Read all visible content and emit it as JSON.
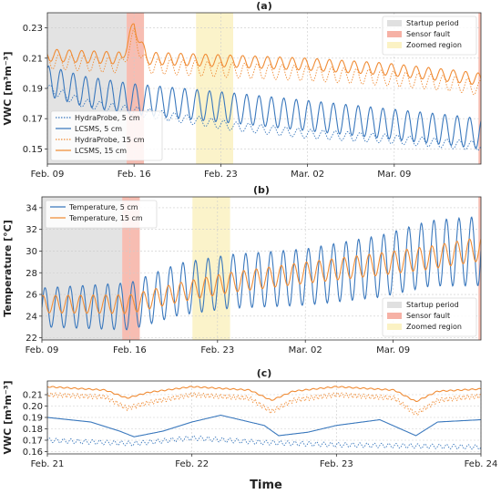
{
  "figure": {
    "xlabel": "Time"
  },
  "colors": {
    "blue": "#3a78bd",
    "orange": "#f08c35",
    "startup": "#e0e0e0",
    "fault": "#f6b1a5",
    "zoom": "#fbf2c4"
  },
  "chart_data": [
    {
      "id": "a",
      "type": "line",
      "title": "(a)",
      "ylabel": "VWC [m³m⁻³]",
      "xlabel": "",
      "x_unit": "day (Feb 1 = day 1)",
      "xlim": [
        9,
        44
      ],
      "ylim": [
        0.14,
        0.24
      ],
      "yticks": [
        0.15,
        0.17,
        0.19,
        0.21,
        0.23
      ],
      "xticks": [
        {
          "x": 9,
          "label": "Feb. 09"
        },
        {
          "x": 16,
          "label": "Feb. 16"
        },
        {
          "x": 23,
          "label": "Feb. 23"
        },
        {
          "x": 30,
          "label": "Mar. 02"
        },
        {
          "x": 37,
          "label": "Mar. 09"
        }
      ],
      "grid": true,
      "spans": [
        {
          "name": "Startup period",
          "x0": 9,
          "x1": 15.4,
          "color": "startup"
        },
        {
          "name": "Sensor fault",
          "x0": 15.4,
          "x1": 16.8,
          "color": "fault"
        },
        {
          "name": "Zoomed region",
          "x0": 21,
          "x1": 24,
          "color": "zoom"
        },
        {
          "name": "",
          "x0": 43.8,
          "x1": 44,
          "color": "fault"
        }
      ],
      "span_legend": {
        "placement": "top-right",
        "entries": [
          "Startup period",
          "Sensor fault",
          "Zoomed region"
        ]
      },
      "series_legend": {
        "placement": "bottom-left"
      },
      "series": [
        {
          "name": "HydraProbe, 5 cm",
          "color": "blue",
          "style": "dotted",
          "points": [
            [
              9,
              0.19
            ],
            [
              12,
              0.18
            ],
            [
              16,
              0.175
            ],
            [
              20,
              0.17
            ],
            [
              24,
              0.165
            ],
            [
              30,
              0.16
            ],
            [
              36,
              0.157
            ],
            [
              42,
              0.153
            ],
            [
              44,
              0.152
            ]
          ],
          "amplitude": 0.003,
          "period": 1
        },
        {
          "name": "LCSMS, 5 cm",
          "color": "blue",
          "style": "solid",
          "points": [
            [
              9,
              0.195
            ],
            [
              12,
              0.188
            ],
            [
              16,
              0.183
            ],
            [
              20,
              0.18
            ],
            [
              24,
              0.177
            ],
            [
              30,
              0.172
            ],
            [
              36,
              0.167
            ],
            [
              42,
              0.162
            ],
            [
              44,
              0.16
            ]
          ],
          "amplitude": 0.01,
          "period": 1
        },
        {
          "name": "HydraProbe, 15 cm",
          "color": "orange",
          "style": "dotted",
          "points": [
            [
              9,
              0.208
            ],
            [
              15,
              0.205
            ],
            [
              16,
              0.225
            ],
            [
              17,
              0.205
            ],
            [
              24,
              0.202
            ],
            [
              30,
              0.2
            ],
            [
              36,
              0.197
            ],
            [
              42,
              0.193
            ],
            [
              44,
              0.19
            ]
          ],
          "amplitude": 0.005,
          "period": 1
        },
        {
          "name": "LCSMS, 15 cm",
          "color": "orange",
          "style": "solid",
          "points": [
            [
              9,
              0.212
            ],
            [
              15,
              0.21
            ],
            [
              16,
              0.232
            ],
            [
              17,
              0.21
            ],
            [
              24,
              0.208
            ],
            [
              30,
              0.206
            ],
            [
              36,
              0.203
            ],
            [
              42,
              0.198
            ],
            [
              44,
              0.196
            ]
          ],
          "amplitude": 0.004,
          "period": 1
        }
      ]
    },
    {
      "id": "b",
      "type": "line",
      "title": "(b)",
      "ylabel": "Temperature [°C]",
      "xlabel": "",
      "x_unit": "day (Feb 1 = day 1)",
      "xlim": [
        9,
        44
      ],
      "ylim": [
        21.8,
        35
      ],
      "yticks": [
        22,
        24,
        26,
        28,
        30,
        32,
        34
      ],
      "xticks": [
        {
          "x": 9,
          "label": "Feb. 09"
        },
        {
          "x": 16,
          "label": "Feb. 16"
        },
        {
          "x": 23,
          "label": "Feb. 23"
        },
        {
          "x": 30,
          "label": "Mar. 02"
        },
        {
          "x": 37,
          "label": "Mar. 09"
        }
      ],
      "grid": true,
      "spans": [
        {
          "name": "Startup period",
          "x0": 9,
          "x1": 15.4,
          "color": "startup"
        },
        {
          "name": "Sensor fault",
          "x0": 15.4,
          "x1": 16.8,
          "color": "fault"
        },
        {
          "name": "Zoomed region",
          "x0": 21,
          "x1": 24,
          "color": "zoom"
        },
        {
          "name": "",
          "x0": 43.8,
          "x1": 44,
          "color": "fault"
        }
      ],
      "span_legend": {
        "placement": "bottom-right",
        "entries": [
          "Startup period",
          "Sensor fault",
          "Zoomed region"
        ]
      },
      "series_legend": {
        "placement": "top-left"
      },
      "series": [
        {
          "name": "Temperature, 5 cm",
          "color": "blue",
          "style": "solid",
          "points": [
            [
              9,
              24.8
            ],
            [
              16,
              24.9
            ],
            [
              20,
              26.5
            ],
            [
              24,
              27.2
            ],
            [
              30,
              27.6
            ],
            [
              36,
              28.6
            ],
            [
              40,
              29.8
            ],
            [
              44,
              30
            ]
          ],
          "amplitude": [
            [
              9,
              1.8
            ],
            [
              20,
              2.4
            ],
            [
              30,
              2.6
            ],
            [
              44,
              3.2
            ]
          ],
          "period": 1
        },
        {
          "name": "Temperature, 15 cm",
          "color": "orange",
          "style": "solid",
          "points": [
            [
              9,
              25.1
            ],
            [
              16,
              25.1
            ],
            [
              20,
              26.2
            ],
            [
              24,
              27.1
            ],
            [
              30,
              28.0
            ],
            [
              36,
              28.8
            ],
            [
              40,
              29.4
            ],
            [
              44,
              30.2
            ]
          ],
          "amplitude": [
            [
              9,
              0.8
            ],
            [
              44,
              1.1
            ]
          ],
          "period": 1
        }
      ]
    },
    {
      "id": "c",
      "type": "line",
      "title": "(c)",
      "ylabel": "VWC [m³m⁻³]",
      "xlabel": "",
      "x_unit": "day (Feb 1 = day 1)",
      "xlim": [
        21,
        24
      ],
      "ylim": [
        0.158,
        0.222
      ],
      "yticks": [
        0.16,
        0.17,
        0.18,
        0.19,
        0.2,
        0.21
      ],
      "xticks": [
        {
          "x": 21,
          "label": "Feb. 21"
        },
        {
          "x": 22,
          "label": "Feb. 22"
        },
        {
          "x": 23,
          "label": "Feb. 23"
        },
        {
          "x": 24,
          "label": "Feb. 24"
        }
      ],
      "grid": true,
      "spans": [],
      "series": [
        {
          "name": "HydraProbe, 5 cm",
          "color": "blue",
          "style": "dotted",
          "points": [
            [
              21,
              0.17
            ],
            [
              21.4,
              0.168
            ],
            [
              21.6,
              0.167
            ],
            [
              22,
              0.172
            ],
            [
              22.5,
              0.168
            ],
            [
              23,
              0.166
            ],
            [
              23.5,
              0.165
            ],
            [
              24,
              0.164
            ]
          ],
          "amplitude": 0.002,
          "period": 0.05
        },
        {
          "name": "LCSMS, 5 cm",
          "color": "blue",
          "style": "solid",
          "points": [
            [
              21,
              0.19
            ],
            [
              21.3,
              0.186
            ],
            [
              21.5,
              0.178
            ],
            [
              21.6,
              0.173
            ],
            [
              21.8,
              0.178
            ],
            [
              22,
              0.186
            ],
            [
              22.2,
              0.192
            ],
            [
              22.5,
              0.183
            ],
            [
              22.6,
              0.174
            ],
            [
              22.8,
              0.177
            ],
            [
              23,
              0.183
            ],
            [
              23.3,
              0.188
            ],
            [
              23.55,
              0.174
            ],
            [
              23.7,
              0.186
            ],
            [
              24,
              0.188
            ]
          ],
          "amplitude": 0,
          "period": 1
        },
        {
          "name": "HydraProbe, 15 cm",
          "color": "orange",
          "style": "dotted",
          "points": [
            [
              21,
              0.21
            ],
            [
              21.4,
              0.208
            ],
            [
              21.55,
              0.198
            ],
            [
              21.7,
              0.203
            ],
            [
              22,
              0.21
            ],
            [
              22.4,
              0.207
            ],
            [
              22.55,
              0.195
            ],
            [
              22.7,
              0.205
            ],
            [
              23,
              0.21
            ],
            [
              23.4,
              0.207
            ],
            [
              23.55,
              0.193
            ],
            [
              23.7,
              0.205
            ],
            [
              24,
              0.209
            ]
          ],
          "amplitude": 0.002,
          "period": 0.03
        },
        {
          "name": "LCSMS, 15 cm",
          "color": "orange",
          "style": "solid",
          "points": [
            [
              21,
              0.217
            ],
            [
              21.4,
              0.214
            ],
            [
              21.55,
              0.207
            ],
            [
              21.7,
              0.212
            ],
            [
              22,
              0.217
            ],
            [
              22.4,
              0.214
            ],
            [
              22.55,
              0.205
            ],
            [
              22.7,
              0.213
            ],
            [
              23,
              0.217
            ],
            [
              23.4,
              0.214
            ],
            [
              23.55,
              0.204
            ],
            [
              23.7,
              0.213
            ],
            [
              24,
              0.215
            ]
          ],
          "amplitude": 0.0005,
          "period": 0.05
        }
      ]
    }
  ]
}
